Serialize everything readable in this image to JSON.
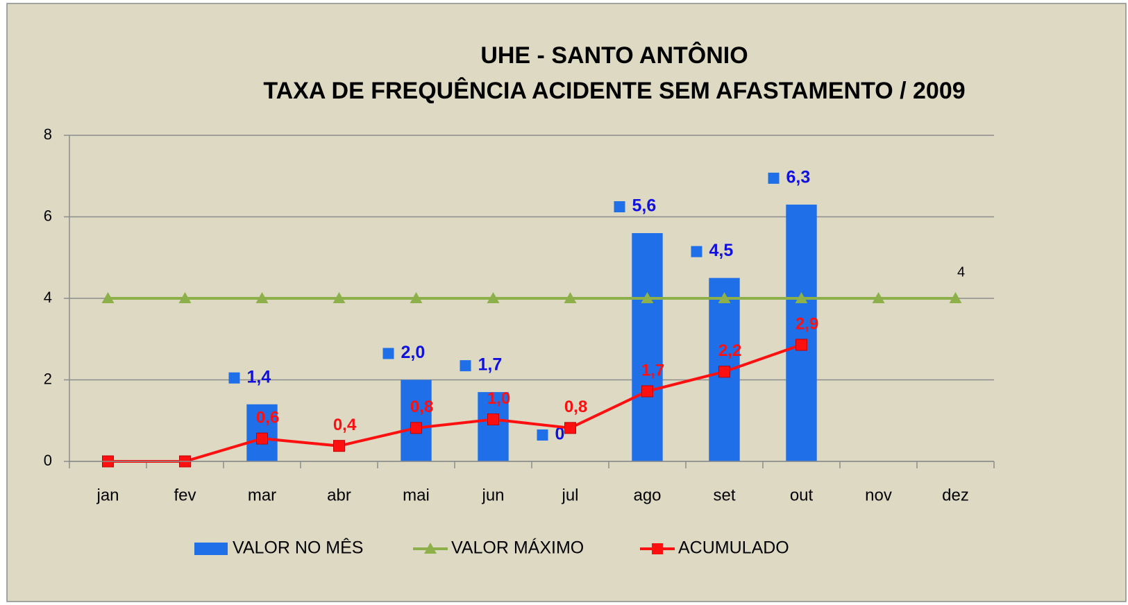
{
  "chart_data": {
    "type": "bar",
    "title": "UHE - SANTO ANTÔNIO",
    "subtitle": "TAXA DE FREQUÊNCIA ACIDENTE SEM AFASTAMENTO / 2009",
    "categories": [
      "jan",
      "fev",
      "mar",
      "abr",
      "mai",
      "jun",
      "jul",
      "ago",
      "set",
      "out",
      "nov",
      "dez"
    ],
    "ylim": [
      0,
      8
    ],
    "yticks": [
      0,
      2,
      4,
      6,
      8
    ],
    "grid": true,
    "legend": "bottom",
    "series": [
      {
        "name": "VALOR NO MÊS",
        "type": "bar",
        "color": "#1f6fe8",
        "values": [
          null,
          null,
          1.4,
          null,
          2.0,
          1.7,
          0,
          5.6,
          4.5,
          6.3,
          null,
          null
        ],
        "value_labels": [
          null,
          null,
          "1,4",
          null,
          "2,0",
          "1,7",
          "0",
          "5,6",
          "4,5",
          "6,3",
          null,
          null
        ]
      },
      {
        "name": "VALOR MÁXIMO",
        "type": "line",
        "color": "#8db04a",
        "values": [
          4,
          4,
          4,
          4,
          4,
          4,
          4,
          4,
          4,
          4,
          4,
          4
        ],
        "value_labels": [
          null,
          null,
          null,
          null,
          null,
          null,
          null,
          null,
          null,
          null,
          null,
          "4"
        ]
      },
      {
        "name": "ACUMULADO",
        "type": "line",
        "color": "#ff1010",
        "values": [
          0,
          0,
          0.56,
          0.38,
          0.82,
          1.03,
          0.82,
          1.72,
          2.2,
          2.86,
          null,
          null
        ],
        "value_labels": [
          null,
          null,
          "0,6",
          "0,4",
          "0,8",
          "1,0",
          "0,8",
          "1,7",
          "2,2",
          "2,9",
          null,
          null
        ]
      }
    ]
  }
}
